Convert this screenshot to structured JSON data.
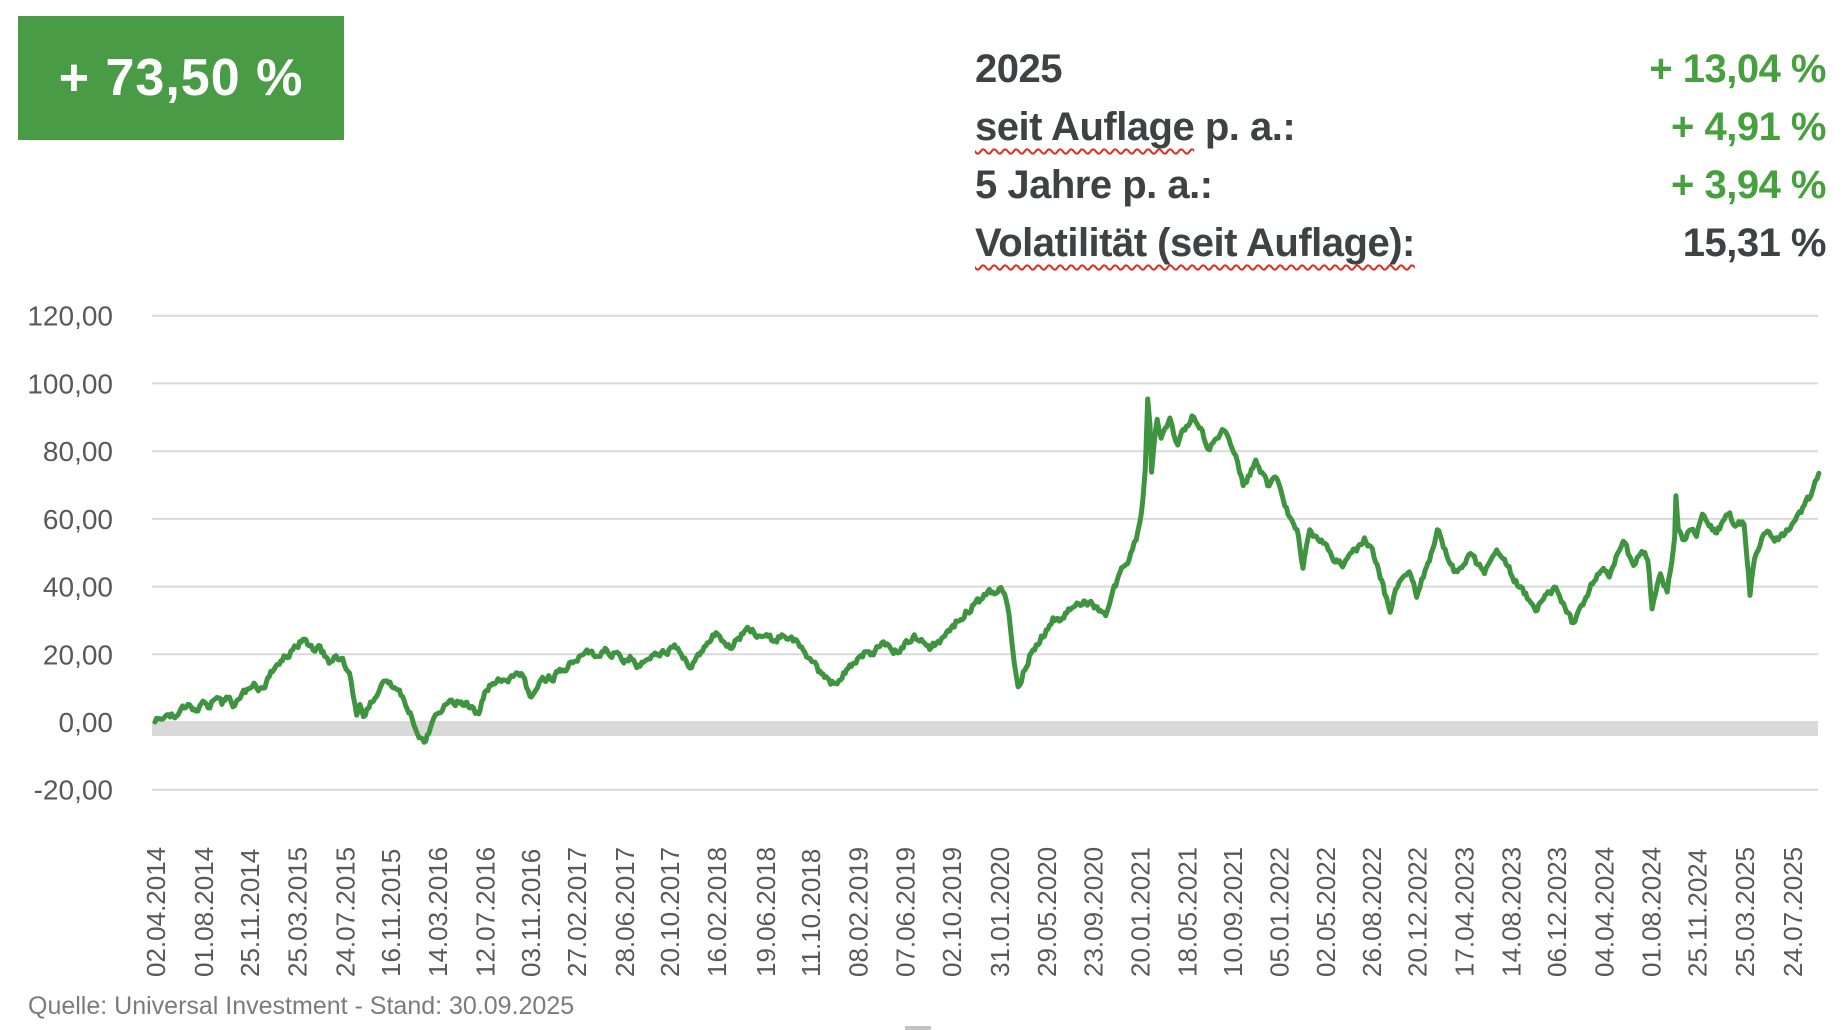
{
  "colors": {
    "background": "#ffffff",
    "badge_green": "#4a9b45",
    "badge_text": "#ffffff",
    "value_green": "#47a03e",
    "line_green": "#3f9440",
    "dark_text": "#3d4242",
    "axis_text": "#595959",
    "grid": "#d9d9d9",
    "band": "#d9d9d9",
    "squiggle_red": "#d93025",
    "footer_text": "#7b7b7b",
    "artifact": "#c3c3c3"
  },
  "badge": {
    "text": "+ 73,50 %"
  },
  "stats": {
    "rows": [
      {
        "label_wavy": "",
        "label_plain": "2025",
        "value": "+ 13,04 %"
      },
      {
        "label_wavy": "seit Auflage",
        "label_plain": " p. a.:",
        "value": "+ 4,91 %"
      },
      {
        "label_wavy": "",
        "label_plain": "5 Jahre p. a.:",
        "value": "+ 3,94 %"
      },
      {
        "label_wavy": "Volatilität (seit Auflage):",
        "label_plain": "",
        "value": "15,31 %"
      }
    ]
  },
  "footer": {
    "text": "Quelle: Universal Investment - Stand: 30.09.2025"
  },
  "chart_data": {
    "type": "line",
    "title": "",
    "xlabel": "",
    "ylabel": "",
    "grid": true,
    "legend": "none",
    "y_axis": {
      "min": -20,
      "max": 120,
      "step": 20,
      "ticks": [
        {
          "v": 120,
          "label": "120,00"
        },
        {
          "v": 100,
          "label": "100,00"
        },
        {
          "v": 80,
          "label": "80,00"
        },
        {
          "v": 60,
          "label": "60,00"
        },
        {
          "v": 40,
          "label": "40,00"
        },
        {
          "v": 20,
          "label": "20,00"
        },
        {
          "v": 0,
          "label": "0,00"
        },
        {
          "v": -20,
          "label": "-20,00"
        }
      ]
    },
    "x_axis": {
      "label_rotation_deg": -90,
      "tick_labels": [
        "02.04.2014",
        "01.08.2014",
        "25.11.2014",
        "25.03.2015",
        "24.07.2015",
        "16.11.2015",
        "14.03.2016",
        "12.07.2016",
        "03.11.2016",
        "27.02.2017",
        "28.06.2017",
        "20.10.2017",
        "16.02.2018",
        "19.06.2018",
        "11.10.2018",
        "08.02.2019",
        "07.06.2019",
        "02.10.2019",
        "31.01.2020",
        "29.05.2020",
        "23.09.2020",
        "20.01.2021",
        "18.05.2021",
        "10.09.2021",
        "05.01.2022",
        "02.05.2022",
        "26.08.2022",
        "20.12.2022",
        "17.04.2023",
        "14.08.2023",
        "06.12.2023",
        "04.04.2024",
        "01.08.2024",
        "25.11.2024",
        "25.03.2025",
        "24.07.2025"
      ]
    },
    "series": [
      {
        "color": "#3f9440",
        "points": [
          [
            "2014-04-02",
            0
          ],
          [
            "2014-04-18",
            0.8
          ],
          [
            "2014-05-06",
            2.2
          ],
          [
            "2014-05-22",
            1.2
          ],
          [
            "2014-06-06",
            3.8
          ],
          [
            "2014-06-24",
            5.2
          ],
          [
            "2014-07-10",
            3.8
          ],
          [
            "2014-07-24",
            4.8
          ],
          [
            "2014-08-01",
            6.2
          ],
          [
            "2014-08-14",
            4.2
          ],
          [
            "2014-09-01",
            6.8
          ],
          [
            "2014-09-18",
            5.2
          ],
          [
            "2014-10-03",
            7.2
          ],
          [
            "2014-10-20",
            4.8
          ],
          [
            "2014-11-07",
            8.2
          ],
          [
            "2014-11-25",
            9.8
          ],
          [
            "2014-12-08",
            11.5
          ],
          [
            "2014-12-19",
            9.2
          ],
          [
            "2015-01-08",
            11.8
          ],
          [
            "2015-01-23",
            14.8
          ],
          [
            "2015-02-10",
            17
          ],
          [
            "2015-02-25",
            19.5
          ],
          [
            "2015-03-11",
            21
          ],
          [
            "2015-03-25",
            22.3
          ],
          [
            "2015-04-10",
            24.4
          ],
          [
            "2015-04-22",
            22.8
          ],
          [
            "2015-05-06",
            21.2
          ],
          [
            "2015-05-20",
            22.6
          ],
          [
            "2015-06-04",
            19.4
          ],
          [
            "2015-06-19",
            17.8
          ],
          [
            "2015-07-03",
            19.6
          ],
          [
            "2015-07-24",
            16.8
          ],
          [
            "2015-08-10",
            12
          ],
          [
            "2015-08-24",
            2
          ],
          [
            "2015-09-01",
            5.2
          ],
          [
            "2015-09-10",
            1.6
          ],
          [
            "2015-09-24",
            4.2
          ],
          [
            "2015-10-09",
            7
          ],
          [
            "2015-10-23",
            10.4
          ],
          [
            "2015-11-16",
            11.8
          ],
          [
            "2015-12-01",
            9.8
          ],
          [
            "2015-12-14",
            7.8
          ],
          [
            "2016-01-06",
            2.8
          ],
          [
            "2016-01-20",
            -2.2
          ],
          [
            "2016-02-10",
            -6
          ],
          [
            "2016-02-22",
            -3.4
          ],
          [
            "2016-03-14",
            2.4
          ],
          [
            "2016-04-01",
            5
          ],
          [
            "2016-04-15",
            6.4
          ],
          [
            "2016-04-29",
            4.8
          ],
          [
            "2016-05-13",
            6
          ],
          [
            "2016-06-01",
            4.4
          ],
          [
            "2016-06-27",
            2.4
          ],
          [
            "2016-07-12",
            8.8
          ],
          [
            "2016-08-01",
            11.4
          ],
          [
            "2016-08-19",
            12.4
          ],
          [
            "2016-09-09",
            11.8
          ],
          [
            "2016-10-04",
            14.4
          ],
          [
            "2016-10-21",
            12.8
          ],
          [
            "2016-11-03",
            7.6
          ],
          [
            "2016-11-18",
            9.4
          ],
          [
            "2016-12-09",
            12.4
          ],
          [
            "2017-01-05",
            13.8
          ],
          [
            "2017-01-25",
            15.4
          ],
          [
            "2017-02-27",
            18
          ],
          [
            "2017-03-15",
            19.8
          ],
          [
            "2017-04-04",
            20.8
          ],
          [
            "2017-04-21",
            19.4
          ],
          [
            "2017-05-12",
            21.8
          ],
          [
            "2017-06-02",
            20.4
          ],
          [
            "2017-06-28",
            17.4
          ],
          [
            "2017-07-14",
            19.4
          ],
          [
            "2017-08-04",
            16.8
          ],
          [
            "2017-08-25",
            18.4
          ],
          [
            "2017-09-15",
            20.4
          ],
          [
            "2017-10-20",
            21.4
          ],
          [
            "2017-11-03",
            22.8
          ],
          [
            "2017-11-24",
            18.8
          ],
          [
            "2017-12-08",
            16.4
          ],
          [
            "2018-01-05",
            19.8
          ],
          [
            "2018-01-25",
            23.4
          ],
          [
            "2018-02-16",
            26.4
          ],
          [
            "2018-03-06",
            23.8
          ],
          [
            "2018-03-23",
            21.8
          ],
          [
            "2018-04-13",
            24.8
          ],
          [
            "2018-05-10",
            27.4
          ],
          [
            "2018-06-19",
            25.4
          ],
          [
            "2018-07-10",
            23.8
          ],
          [
            "2018-08-01",
            25.8
          ],
          [
            "2018-08-21",
            24.8
          ],
          [
            "2018-09-11",
            23.4
          ],
          [
            "2018-10-11",
            18.8
          ],
          [
            "2018-11-01",
            14.8
          ],
          [
            "2018-11-20",
            13.4
          ],
          [
            "2018-12-10",
            11.4
          ],
          [
            "2018-12-27",
            12.4
          ],
          [
            "2019-01-15",
            15.8
          ],
          [
            "2019-02-08",
            18.8
          ],
          [
            "2019-03-01",
            20.8
          ],
          [
            "2019-03-20",
            19.8
          ],
          [
            "2019-04-10",
            23.4
          ],
          [
            "2019-05-02",
            21.8
          ],
          [
            "2019-05-21",
            20.4
          ],
          [
            "2019-06-07",
            23.4
          ],
          [
            "2019-07-01",
            25.8
          ],
          [
            "2019-07-19",
            24.4
          ],
          [
            "2019-08-09",
            21.4
          ],
          [
            "2019-08-30",
            23.8
          ],
          [
            "2019-09-20",
            26.4
          ],
          [
            "2019-10-02",
            27.8
          ],
          [
            "2019-10-18",
            29.8
          ],
          [
            "2019-11-08",
            32.8
          ],
          [
            "2019-11-29",
            34.8
          ],
          [
            "2019-12-20",
            36.4
          ],
          [
            "2020-01-15",
            38.4
          ],
          [
            "2020-01-31",
            39.4
          ],
          [
            "2020-02-14",
            37.8
          ],
          [
            "2020-02-25",
            31.8
          ],
          [
            "2020-03-09",
            17.8
          ],
          [
            "2020-03-19",
            10.4
          ],
          [
            "2020-04-01",
            14.8
          ],
          [
            "2020-04-17",
            19.8
          ],
          [
            "2020-05-04",
            22.8
          ],
          [
            "2020-05-29",
            27.2
          ],
          [
            "2020-06-15",
            30.8
          ],
          [
            "2020-07-01",
            29.8
          ],
          [
            "2020-07-20",
            32.2
          ],
          [
            "2020-08-10",
            34.2
          ],
          [
            "2020-09-01",
            35.8
          ],
          [
            "2020-09-23",
            34.8
          ],
          [
            "2020-10-09",
            32.8
          ],
          [
            "2020-10-26",
            31.4
          ],
          [
            "2020-11-09",
            36.8
          ],
          [
            "2020-11-24",
            41.8
          ],
          [
            "2020-12-09",
            45.8
          ],
          [
            "2020-12-28",
            49.8
          ],
          [
            "2021-01-11",
            53.8
          ],
          [
            "2021-01-20",
            58.8
          ],
          [
            "2021-01-28",
            65.8
          ],
          [
            "2021-02-03",
            74.8
          ],
          [
            "2021-02-09",
            95.4
          ],
          [
            "2021-02-15",
            87.8
          ],
          [
            "2021-02-19",
            73.8
          ],
          [
            "2021-02-25",
            81.8
          ],
          [
            "2021-03-05",
            89.4
          ],
          [
            "2021-03-15",
            83.8
          ],
          [
            "2021-03-25",
            86.8
          ],
          [
            "2021-04-06",
            89.8
          ],
          [
            "2021-04-16",
            84.8
          ],
          [
            "2021-04-26",
            81.8
          ],
          [
            "2021-05-06",
            85.8
          ],
          [
            "2021-05-18",
            87.4
          ],
          [
            "2021-06-01",
            90.4
          ],
          [
            "2021-06-15",
            87.8
          ],
          [
            "2021-07-01",
            83.8
          ],
          [
            "2021-07-15",
            80.4
          ],
          [
            "2021-08-02",
            83.8
          ],
          [
            "2021-08-16",
            86.4
          ],
          [
            "2021-09-10",
            80.8
          ],
          [
            "2021-09-24",
            76.8
          ],
          [
            "2021-10-08",
            69.8
          ],
          [
            "2021-10-25",
            72.8
          ],
          [
            "2021-11-09",
            77.4
          ],
          [
            "2021-11-24",
            73.8
          ],
          [
            "2021-12-09",
            69.8
          ],
          [
            "2021-12-28",
            72.4
          ],
          [
            "2022-01-05",
            70.8
          ],
          [
            "2022-01-21",
            63.8
          ],
          [
            "2022-02-07",
            59.8
          ],
          [
            "2022-02-21",
            56.8
          ],
          [
            "2022-03-08",
            45.4
          ],
          [
            "2022-03-25",
            56.8
          ],
          [
            "2022-04-11",
            54.8
          ],
          [
            "2022-05-02",
            52.8
          ],
          [
            "2022-05-20",
            48.8
          ],
          [
            "2022-06-16",
            45.8
          ],
          [
            "2022-07-05",
            49.8
          ],
          [
            "2022-07-25",
            51.8
          ],
          [
            "2022-08-10",
            54.4
          ],
          [
            "2022-08-26",
            51.8
          ],
          [
            "2022-09-15",
            44.8
          ],
          [
            "2022-09-30",
            37.8
          ],
          [
            "2022-10-14",
            32.4
          ],
          [
            "2022-11-01",
            39.8
          ],
          [
            "2022-11-15",
            42.8
          ],
          [
            "2022-12-01",
            44.4
          ],
          [
            "2022-12-20",
            36.8
          ],
          [
            "2023-01-10",
            44.8
          ],
          [
            "2023-01-25",
            49.8
          ],
          [
            "2023-02-10",
            56.8
          ],
          [
            "2023-02-21",
            53.8
          ],
          [
            "2023-03-10",
            47.8
          ],
          [
            "2023-03-24",
            44.4
          ],
          [
            "2023-04-17",
            46.4
          ],
          [
            "2023-05-05",
            49.8
          ],
          [
            "2023-05-19",
            46.8
          ],
          [
            "2023-06-09",
            43.8
          ],
          [
            "2023-06-23",
            47.4
          ],
          [
            "2023-07-14",
            49.8
          ],
          [
            "2023-08-14",
            43.8
          ],
          [
            "2023-09-05",
            39.8
          ],
          [
            "2023-09-25",
            36.4
          ],
          [
            "2023-10-16",
            32.8
          ],
          [
            "2023-11-01",
            35.8
          ],
          [
            "2023-11-20",
            38.4
          ],
          [
            "2023-12-06",
            39.8
          ],
          [
            "2023-12-20",
            35.4
          ],
          [
            "2024-01-15",
            29.4
          ],
          [
            "2024-02-01",
            32.8
          ],
          [
            "2024-02-20",
            36.8
          ],
          [
            "2024-03-08",
            40.8
          ],
          [
            "2024-04-04",
            45.4
          ],
          [
            "2024-04-19",
            42.8
          ],
          [
            "2024-05-10",
            49.8
          ],
          [
            "2024-05-24",
            53.4
          ],
          [
            "2024-06-10",
            48.8
          ],
          [
            "2024-06-24",
            46.8
          ],
          [
            "2024-07-10",
            50.4
          ],
          [
            "2024-07-25",
            47.8
          ],
          [
            "2024-08-05",
            33.4
          ],
          [
            "2024-08-26",
            43.8
          ],
          [
            "2024-09-12",
            38.4
          ],
          [
            "2024-10-01",
            54.8
          ],
          [
            "2024-10-04",
            66.8
          ],
          [
            "2024-10-10",
            56.8
          ],
          [
            "2024-10-25",
            53.8
          ],
          [
            "2024-11-11",
            56.8
          ],
          [
            "2024-11-25",
            54.8
          ],
          [
            "2024-12-10",
            61.4
          ],
          [
            "2024-12-27",
            57.8
          ],
          [
            "2025-01-15",
            55.8
          ],
          [
            "2025-02-03",
            59.8
          ],
          [
            "2025-02-17",
            61.8
          ],
          [
            "2025-03-03",
            57.8
          ],
          [
            "2025-03-25",
            58.4
          ],
          [
            "2025-04-09",
            37.4
          ],
          [
            "2025-04-16",
            44.8
          ],
          [
            "2025-04-25",
            49.8
          ],
          [
            "2025-05-09",
            54.4
          ],
          [
            "2025-05-23",
            56.4
          ],
          [
            "2025-06-10",
            53.4
          ],
          [
            "2025-06-24",
            54.8
          ],
          [
            "2025-07-10",
            56.8
          ],
          [
            "2025-07-24",
            58.4
          ],
          [
            "2025-08-05",
            60.8
          ],
          [
            "2025-08-20",
            63.4
          ],
          [
            "2025-09-05",
            65.8
          ],
          [
            "2025-09-15",
            68.8
          ],
          [
            "2025-09-25",
            71.8
          ],
          [
            "2025-09-30",
            73.5
          ]
        ]
      }
    ]
  }
}
